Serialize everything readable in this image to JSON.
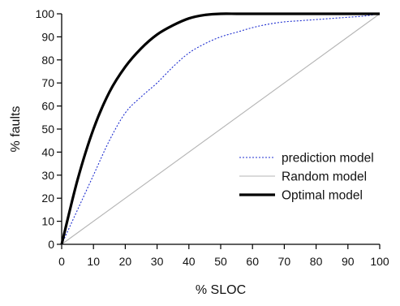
{
  "chart_data": {
    "type": "line",
    "title": "",
    "xlabel": "% SLOC",
    "ylabel": "% faults",
    "xlim": [
      0,
      100
    ],
    "ylim": [
      0,
      100
    ],
    "xticks": [
      "0",
      "10",
      "20",
      "30",
      "40",
      "50",
      "60",
      "70",
      "80",
      "90",
      "100"
    ],
    "yticks": [
      "0",
      "10",
      "20",
      "30",
      "40",
      "50",
      "60",
      "70",
      "80",
      "90",
      "100"
    ],
    "grid": false,
    "legend_position": "bottom-right",
    "series": [
      {
        "name": "prediction model",
        "color": "#1f2fd0",
        "style": "dotted",
        "x": [
          0,
          5,
          10,
          15,
          20,
          25,
          30,
          35,
          40,
          45,
          50,
          55,
          60,
          65,
          70,
          75,
          80,
          85,
          90,
          95,
          100
        ],
        "y": [
          0,
          15,
          30,
          45,
          57,
          64,
          70,
          77,
          83,
          87,
          90,
          92,
          94,
          95.5,
          96.5,
          97,
          97.5,
          98,
          98.5,
          99,
          100
        ]
      },
      {
        "name": "Random model",
        "color": "#b4b4b4",
        "style": "solid",
        "x": [
          0,
          100
        ],
        "y": [
          0,
          100
        ]
      },
      {
        "name": "Optimal model",
        "color": "#000000",
        "style": "thick",
        "x": [
          0,
          5,
          10,
          15,
          20,
          25,
          30,
          35,
          40,
          45,
          50,
          55,
          60,
          70,
          80,
          90,
          100
        ],
        "y": [
          0,
          28,
          50,
          66,
          77,
          85,
          91,
          95,
          98,
          99.5,
          100,
          100,
          100,
          100,
          100,
          100,
          100
        ]
      }
    ]
  }
}
